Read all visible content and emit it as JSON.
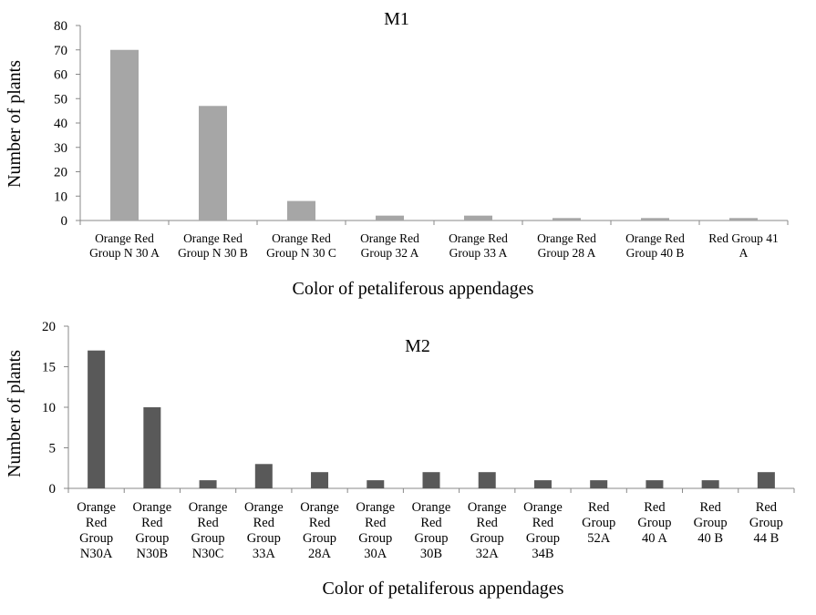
{
  "chart_data": [
    {
      "type": "bar",
      "title": "M1",
      "xlabel": "Color of petaliferous appendages",
      "ylabel": "Number of plants",
      "ylim": [
        0,
        80
      ],
      "yticks": [
        0,
        10,
        20,
        30,
        40,
        50,
        60,
        70,
        80
      ],
      "grid": false,
      "bar_color": "#a6a6a6",
      "categories": [
        [
          "Orange Red",
          "Group N 30 A"
        ],
        [
          "Orange Red",
          "Group N 30 B"
        ],
        [
          "Orange Red",
          "Group N 30 C"
        ],
        [
          "Orange Red",
          "Group 32 A"
        ],
        [
          "Orange Red",
          "Group 33 A"
        ],
        [
          "Orange Red",
          "Group 28 A"
        ],
        [
          "Orange Red",
          "Group 40 B"
        ],
        [
          "Red Group 41",
          "A"
        ]
      ],
      "values": [
        70,
        47,
        8,
        2,
        2,
        1,
        1,
        1
      ]
    },
    {
      "type": "bar",
      "title": "M2",
      "xlabel": "Color of petaliferous appendages",
      "ylabel": "Number of plants",
      "ylim": [
        0,
        20
      ],
      "yticks": [
        0,
        5,
        10,
        15,
        20
      ],
      "grid": false,
      "bar_color": "#595959",
      "categories": [
        [
          "Orange",
          "Red",
          "Group",
          "N30A"
        ],
        [
          "Orange",
          "Red",
          "Group",
          "N30B"
        ],
        [
          "Orange",
          "Red",
          "Group",
          "N30C"
        ],
        [
          "Orange",
          "Red",
          "Group",
          "33A"
        ],
        [
          "Orange",
          "Red",
          "Group",
          "28A"
        ],
        [
          "Orange",
          "Red",
          "Group",
          "30A"
        ],
        [
          "Orange",
          "Red",
          "Group",
          "30B"
        ],
        [
          "Orange",
          "Red",
          "Group",
          "32A"
        ],
        [
          "Orange",
          "Red",
          "Group",
          "34B"
        ],
        [
          "Red",
          "Group",
          "52A"
        ],
        [
          "Red",
          "Group",
          "40 A"
        ],
        [
          "Red",
          "Group",
          "40 B"
        ],
        [
          "Red",
          "Group",
          "44 B"
        ]
      ],
      "values": [
        17,
        10,
        1,
        3,
        2,
        1,
        2,
        2,
        1,
        1,
        1,
        1,
        2
      ]
    }
  ]
}
